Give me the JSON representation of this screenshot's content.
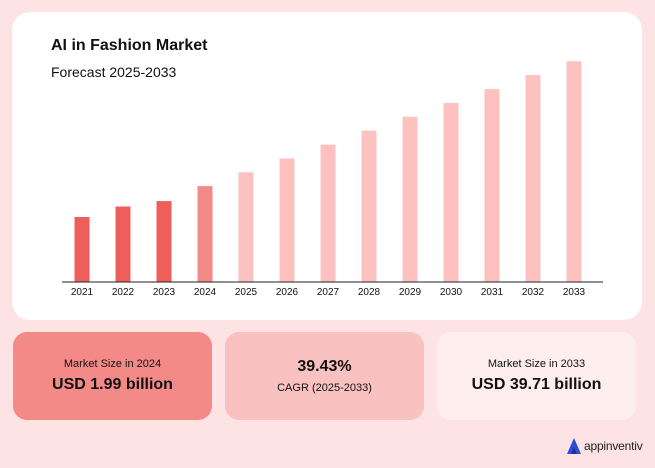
{
  "chart_data": {
    "type": "bar",
    "title": "AI in Fashion Market",
    "subtitle": "Forecast 2025-2033",
    "categories": [
      "2021",
      "2022",
      "2023",
      "2024",
      "2025",
      "2026",
      "2027",
      "2028",
      "2029",
      "2030",
      "2031",
      "2032",
      "2033"
    ],
    "values": [
      0.95,
      1.22,
      1.39,
      1.99,
      2.77,
      3.86,
      5.39,
      7.51,
      10.47,
      14.6,
      20.36,
      28.49,
      39.71
    ],
    "bar_colors": [
      "#ee5f5c",
      "#ee5f5c",
      "#ee5f5c",
      "#f48a88",
      "#fdc1c0",
      "#fdc1c0",
      "#fdc1c0",
      "#fdc1c0",
      "#fdc1c0",
      "#fdc1c0",
      "#fdc1c0",
      "#fdc1c0",
      "#fdc1c0"
    ],
    "scale": "log",
    "ylim": [
      0.2,
      45
    ],
    "grid": false,
    "xlabel": "",
    "ylabel": ""
  },
  "stats": {
    "left": {
      "label": "Market Size in 2024",
      "value": "USD 1.99 billion"
    },
    "middle": {
      "value": "39.43%",
      "label": "CAGR (2025-2033)"
    },
    "right": {
      "label": "Market Size in 2033",
      "value": "USD 39.71 billion"
    }
  },
  "brand": {
    "name": "appinventiv",
    "icon": "appinventiv-logo-icon"
  },
  "colors": {
    "background": "#fde3e3",
    "accent": "#ee5f5c"
  }
}
